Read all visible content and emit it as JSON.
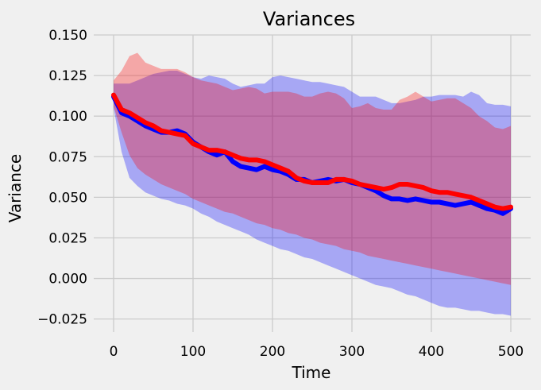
{
  "chart_data": {
    "type": "line",
    "title": "Variances",
    "xlabel": "Time",
    "ylabel": "Variance",
    "xlim": [
      -25,
      525
    ],
    "ylim": [
      -0.033,
      0.15
    ],
    "xticks": [
      0,
      100,
      200,
      300,
      400,
      500
    ],
    "yticks": [
      -0.025,
      0.0,
      0.025,
      0.05,
      0.075,
      0.1,
      0.125,
      0.15
    ],
    "xtick_labels": [
      "0",
      "100",
      "200",
      "300",
      "400",
      "500"
    ],
    "ytick_labels": [
      "−0.025",
      "0.000",
      "0.025",
      "0.050",
      "0.075",
      "0.100",
      "0.125",
      "0.150"
    ],
    "grid": true,
    "series": [
      {
        "color": "#0000ff",
        "band_color": "#0000ff",
        "x": [
          0,
          10,
          20,
          30,
          40,
          50,
          60,
          70,
          80,
          90,
          100,
          110,
          120,
          130,
          140,
          150,
          160,
          170,
          180,
          190,
          200,
          210,
          220,
          230,
          240,
          250,
          260,
          270,
          280,
          290,
          300,
          310,
          320,
          330,
          340,
          350,
          360,
          370,
          380,
          390,
          400,
          410,
          420,
          430,
          440,
          450,
          460,
          470,
          480,
          490,
          500
        ],
        "mean": [
          0.112,
          0.102,
          0.1,
          0.097,
          0.094,
          0.092,
          0.09,
          0.09,
          0.091,
          0.089,
          0.084,
          0.081,
          0.078,
          0.076,
          0.078,
          0.072,
          0.069,
          0.068,
          0.067,
          0.069,
          0.067,
          0.066,
          0.064,
          0.061,
          0.061,
          0.059,
          0.06,
          0.061,
          0.06,
          0.061,
          0.059,
          0.058,
          0.056,
          0.054,
          0.051,
          0.049,
          0.049,
          0.048,
          0.049,
          0.048,
          0.047,
          0.047,
          0.046,
          0.045,
          0.046,
          0.047,
          0.045,
          0.043,
          0.042,
          0.04,
          0.043
        ],
        "lower": [
          0.105,
          0.078,
          0.062,
          0.057,
          0.053,
          0.051,
          0.049,
          0.048,
          0.046,
          0.045,
          0.043,
          0.04,
          0.038,
          0.035,
          0.033,
          0.031,
          0.029,
          0.027,
          0.024,
          0.022,
          0.02,
          0.018,
          0.017,
          0.015,
          0.013,
          0.012,
          0.01,
          0.008,
          0.006,
          0.004,
          0.002,
          0.0,
          -0.002,
          -0.004,
          -0.005,
          -0.006,
          -0.008,
          -0.01,
          -0.011,
          -0.013,
          -0.015,
          -0.017,
          -0.018,
          -0.018,
          -0.019,
          -0.02,
          -0.02,
          -0.021,
          -0.022,
          -0.022,
          -0.023
        ],
        "upper": [
          0.12,
          0.12,
          0.12,
          0.122,
          0.124,
          0.126,
          0.127,
          0.128,
          0.128,
          0.126,
          0.124,
          0.123,
          0.125,
          0.124,
          0.123,
          0.12,
          0.118,
          0.119,
          0.12,
          0.12,
          0.124,
          0.125,
          0.124,
          0.123,
          0.122,
          0.121,
          0.121,
          0.12,
          0.119,
          0.118,
          0.115,
          0.112,
          0.112,
          0.112,
          0.11,
          0.108,
          0.108,
          0.109,
          0.11,
          0.112,
          0.112,
          0.113,
          0.113,
          0.113,
          0.112,
          0.115,
          0.113,
          0.108,
          0.107,
          0.107,
          0.106
        ]
      },
      {
        "color": "#ff0000",
        "band_color": "#ff0000",
        "x": [
          0,
          10,
          20,
          30,
          40,
          50,
          60,
          70,
          80,
          90,
          100,
          110,
          120,
          130,
          140,
          150,
          160,
          170,
          180,
          190,
          200,
          210,
          220,
          230,
          240,
          250,
          260,
          270,
          280,
          290,
          300,
          310,
          320,
          330,
          340,
          350,
          360,
          370,
          380,
          390,
          400,
          410,
          420,
          430,
          440,
          450,
          460,
          470,
          480,
          490,
          500
        ],
        "mean": [
          0.113,
          0.104,
          0.102,
          0.099,
          0.096,
          0.094,
          0.091,
          0.09,
          0.089,
          0.088,
          0.083,
          0.081,
          0.079,
          0.079,
          0.078,
          0.076,
          0.074,
          0.073,
          0.073,
          0.072,
          0.07,
          0.068,
          0.066,
          0.062,
          0.06,
          0.059,
          0.059,
          0.059,
          0.061,
          0.061,
          0.06,
          0.058,
          0.057,
          0.056,
          0.055,
          0.056,
          0.058,
          0.058,
          0.057,
          0.056,
          0.054,
          0.053,
          0.053,
          0.052,
          0.051,
          0.05,
          0.048,
          0.046,
          0.044,
          0.043,
          0.044
        ],
        "lower": [
          0.106,
          0.09,
          0.076,
          0.068,
          0.064,
          0.061,
          0.058,
          0.056,
          0.054,
          0.052,
          0.049,
          0.047,
          0.045,
          0.043,
          0.041,
          0.04,
          0.038,
          0.036,
          0.034,
          0.033,
          0.031,
          0.03,
          0.028,
          0.027,
          0.025,
          0.024,
          0.022,
          0.021,
          0.02,
          0.018,
          0.017,
          0.016,
          0.014,
          0.013,
          0.012,
          0.011,
          0.01,
          0.009,
          0.008,
          0.007,
          0.006,
          0.005,
          0.004,
          0.003,
          0.002,
          0.001,
          0.0,
          -0.001,
          -0.002,
          -0.003,
          -0.004
        ],
        "upper": [
          0.122,
          0.128,
          0.137,
          0.139,
          0.133,
          0.131,
          0.129,
          0.129,
          0.129,
          0.127,
          0.124,
          0.122,
          0.121,
          0.12,
          0.118,
          0.116,
          0.117,
          0.118,
          0.117,
          0.114,
          0.115,
          0.115,
          0.115,
          0.114,
          0.112,
          0.112,
          0.114,
          0.115,
          0.114,
          0.111,
          0.105,
          0.106,
          0.108,
          0.105,
          0.104,
          0.104,
          0.11,
          0.112,
          0.115,
          0.112,
          0.109,
          0.11,
          0.111,
          0.111,
          0.108,
          0.105,
          0.1,
          0.097,
          0.093,
          0.092,
          0.094
        ]
      }
    ]
  }
}
